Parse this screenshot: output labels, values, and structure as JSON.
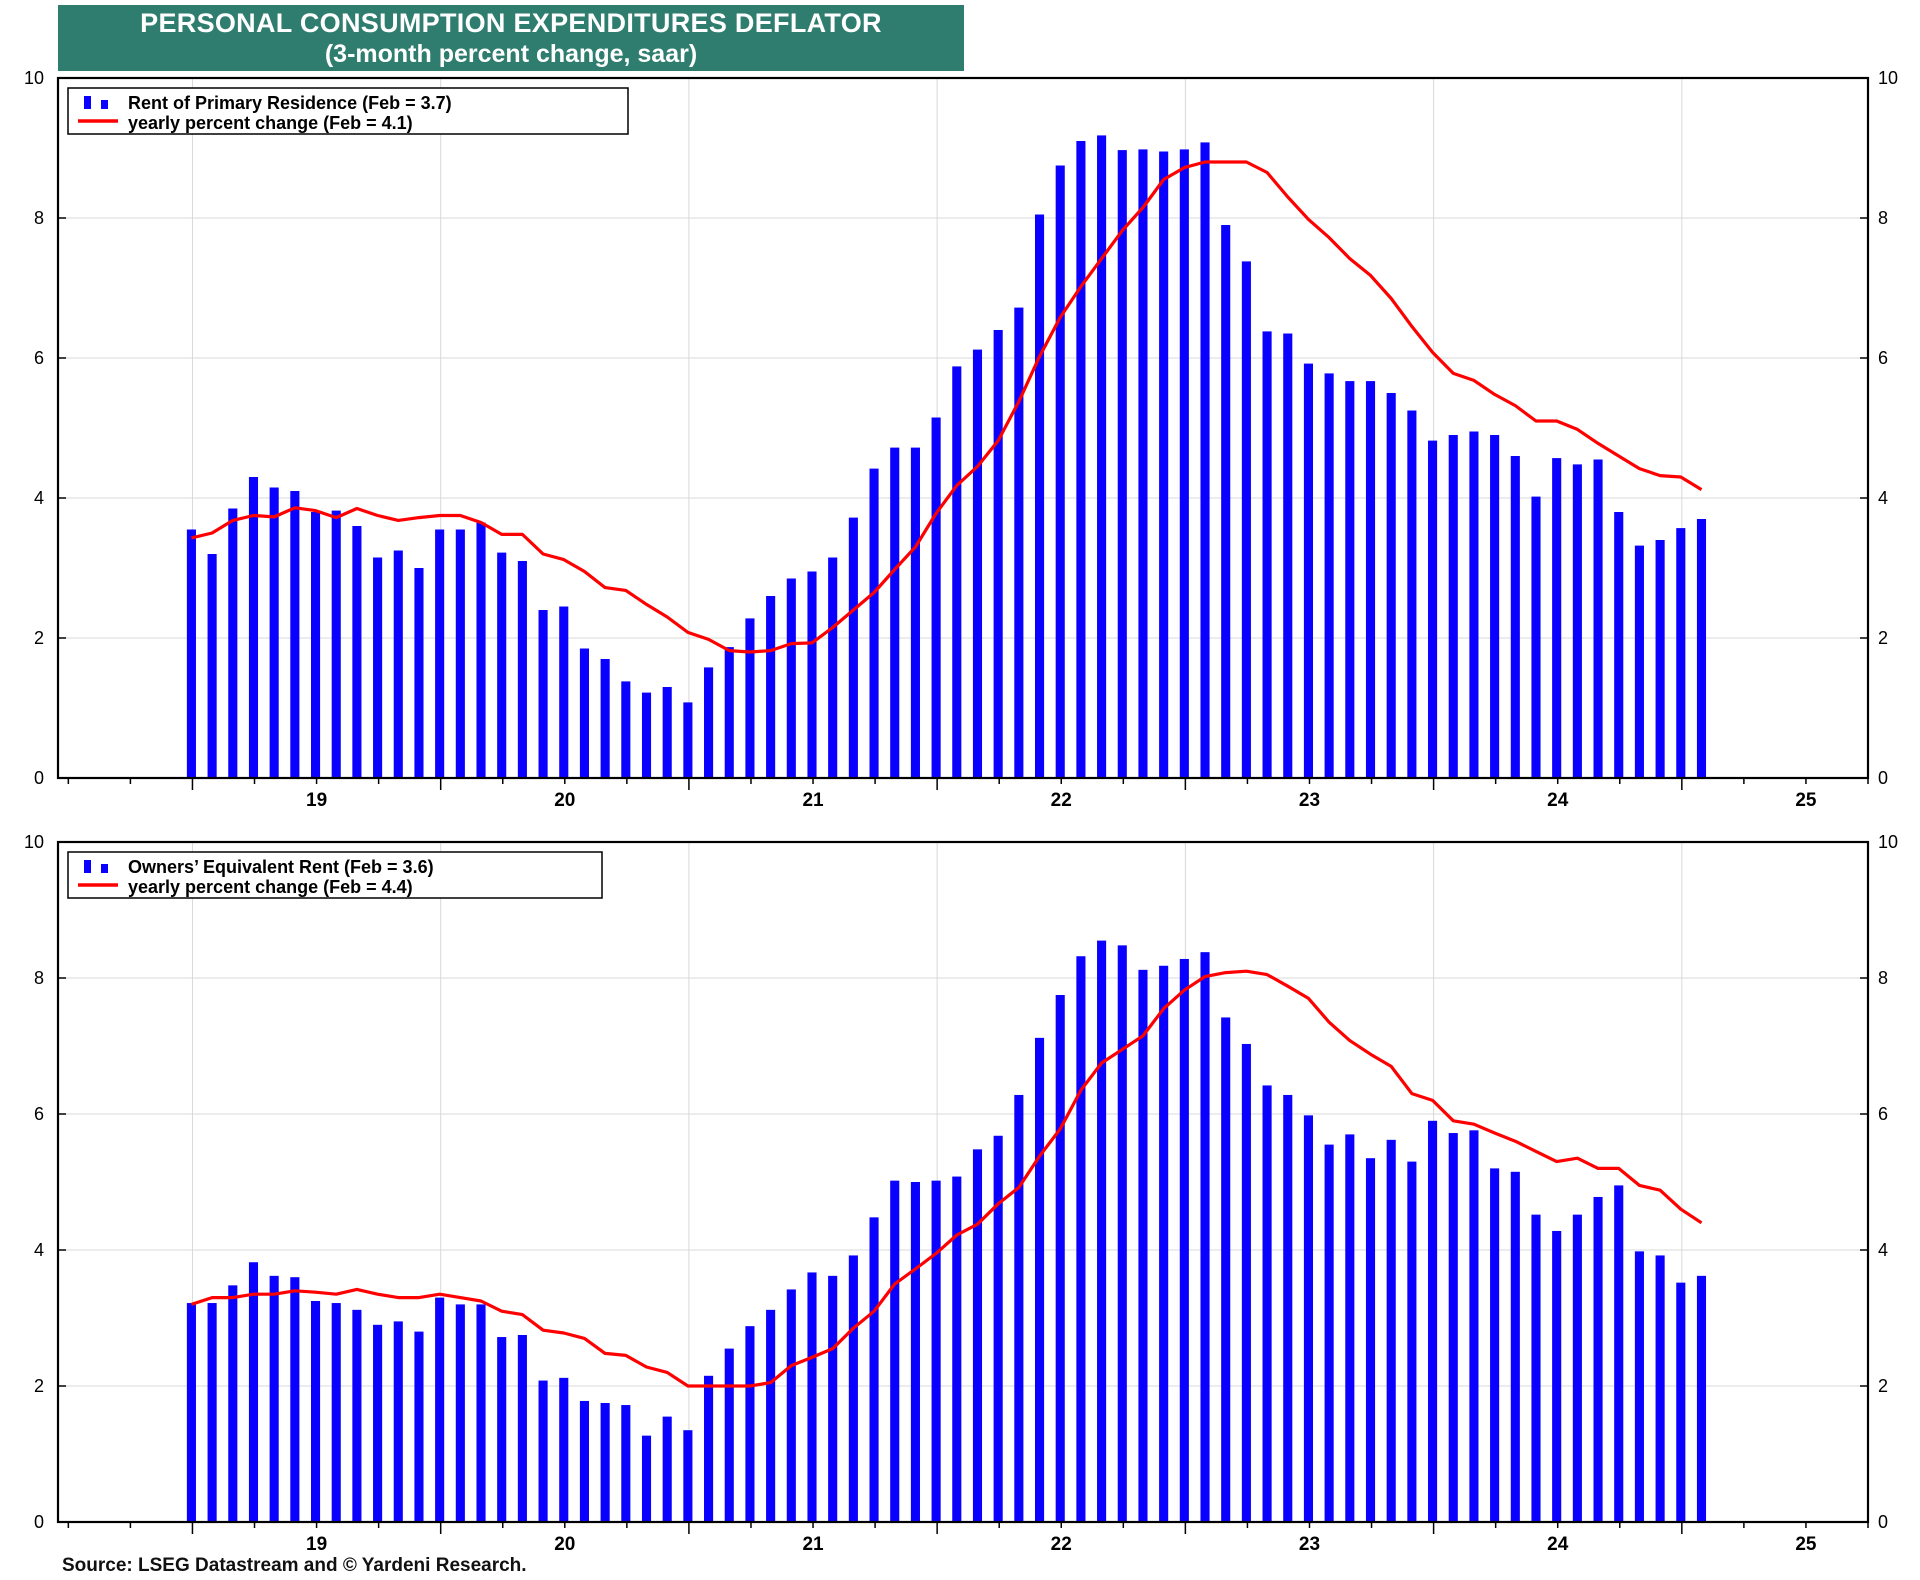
{
  "header": {
    "title": "PERSONAL CONSUMPTION EXPENDITURES DEFLATOR",
    "subtitle": "(3-month percent change, saar)"
  },
  "source": "Source: LSEG Datastream and © Yardeni Research.",
  "colors": {
    "bar": "#0a00ff",
    "line": "#ff0000",
    "title_bg": "#2e7d6e"
  },
  "chart_data": [
    {
      "type": "bar",
      "x_start": "2019-01",
      "x_labels": [
        "19",
        "20",
        "21",
        "22",
        "23",
        "24",
        "25"
      ],
      "y_ticks": [
        "0",
        "2",
        "4",
        "6",
        "8",
        "10"
      ],
      "ylim": [
        0,
        10
      ],
      "grid": true,
      "legend_position": "top-left",
      "series": [
        {
          "name": "Rent of Primary Residence (Feb = 3.7)",
          "kind": "bar",
          "values": [
            3.55,
            3.2,
            3.85,
            4.3,
            4.15,
            4.1,
            3.8,
            3.82,
            3.6,
            3.15,
            3.25,
            3.0,
            3.55,
            3.55,
            3.65,
            3.22,
            3.1,
            2.4,
            2.45,
            1.85,
            1.7,
            1.38,
            1.22,
            1.3,
            1.08,
            1.58,
            1.87,
            2.28,
            2.6,
            2.85,
            2.95,
            3.15,
            3.72,
            4.42,
            4.72,
            4.72,
            5.15,
            5.88,
            6.12,
            6.4,
            6.72,
            8.05,
            8.75,
            9.1,
            9.18,
            8.97,
            8.98,
            8.95,
            8.98,
            9.08,
            7.9,
            7.38,
            6.38,
            6.35,
            5.92,
            5.78,
            5.67,
            5.67,
            5.5,
            5.25,
            4.82,
            4.9,
            4.95,
            4.9,
            4.6,
            4.02,
            4.57,
            4.48,
            4.55,
            3.8,
            3.32,
            3.4,
            3.57,
            3.7
          ]
        },
        {
          "name": "yearly percent change (Feb = 4.1)",
          "kind": "line",
          "values": [
            3.43,
            3.5,
            3.68,
            3.75,
            3.73,
            3.86,
            3.82,
            3.72,
            3.85,
            3.75,
            3.68,
            3.72,
            3.75,
            3.75,
            3.65,
            3.48,
            3.48,
            3.2,
            3.12,
            2.95,
            2.72,
            2.68,
            2.48,
            2.3,
            2.08,
            1.98,
            1.82,
            1.8,
            1.82,
            1.92,
            1.93,
            2.15,
            2.4,
            2.65,
            2.98,
            3.3,
            3.78,
            4.18,
            4.45,
            4.82,
            5.38,
            6.02,
            6.58,
            7.02,
            7.42,
            7.82,
            8.15,
            8.55,
            8.72,
            8.8,
            8.8,
            8.8,
            8.65,
            8.3,
            7.98,
            7.72,
            7.42,
            7.18,
            6.85,
            6.45,
            6.08,
            5.78,
            5.68,
            5.48,
            5.32,
            5.1,
            5.1,
            4.98,
            4.78,
            4.6,
            4.42,
            4.32,
            4.3,
            4.12
          ]
        }
      ]
    },
    {
      "type": "bar",
      "x_start": "2019-01",
      "x_labels": [
        "19",
        "20",
        "21",
        "22",
        "23",
        "24",
        "25"
      ],
      "y_ticks": [
        "0",
        "2",
        "4",
        "6",
        "8",
        "10"
      ],
      "ylim": [
        0,
        10
      ],
      "grid": true,
      "legend_position": "top-left",
      "series": [
        {
          "name": "Owners’ Equivalent Rent (Feb = 3.6)",
          "kind": "bar",
          "values": [
            3.22,
            3.22,
            3.48,
            3.82,
            3.62,
            3.6,
            3.25,
            3.22,
            3.12,
            2.9,
            2.95,
            2.8,
            3.3,
            3.2,
            3.2,
            2.72,
            2.75,
            2.08,
            2.12,
            1.78,
            1.75,
            1.72,
            1.27,
            1.55,
            1.35,
            2.15,
            2.55,
            2.88,
            3.12,
            3.42,
            3.67,
            3.62,
            3.92,
            4.48,
            5.02,
            5.0,
            5.02,
            5.08,
            5.48,
            5.68,
            6.28,
            7.12,
            7.75,
            8.32,
            8.55,
            8.48,
            8.12,
            8.18,
            8.28,
            8.38,
            7.42,
            7.03,
            6.42,
            6.28,
            5.98,
            5.55,
            5.7,
            5.35,
            5.62,
            5.3,
            5.9,
            5.72,
            5.76,
            5.2,
            5.15,
            4.52,
            4.28,
            4.52,
            4.78,
            4.95,
            3.98,
            3.92,
            3.52,
            3.62
          ]
        },
        {
          "name": "yearly percent change (Feb = 4.4)",
          "kind": "line",
          "values": [
            3.2,
            3.3,
            3.3,
            3.35,
            3.35,
            3.4,
            3.38,
            3.35,
            3.42,
            3.35,
            3.3,
            3.3,
            3.35,
            3.3,
            3.25,
            3.1,
            3.05,
            2.82,
            2.78,
            2.7,
            2.48,
            2.45,
            2.28,
            2.2,
            2.0,
            2.0,
            2.0,
            2.0,
            2.05,
            2.3,
            2.42,
            2.55,
            2.85,
            3.1,
            3.5,
            3.72,
            3.95,
            4.22,
            4.38,
            4.68,
            4.92,
            5.38,
            5.78,
            6.35,
            6.75,
            6.95,
            7.15,
            7.55,
            7.82,
            8.02,
            8.08,
            8.1,
            8.05,
            7.88,
            7.7,
            7.35,
            7.08,
            6.88,
            6.7,
            6.3,
            6.2,
            5.9,
            5.85,
            5.72,
            5.6,
            5.45,
            5.3,
            5.35,
            5.2,
            5.2,
            4.95,
            4.88,
            4.6,
            4.4
          ]
        }
      ]
    }
  ]
}
